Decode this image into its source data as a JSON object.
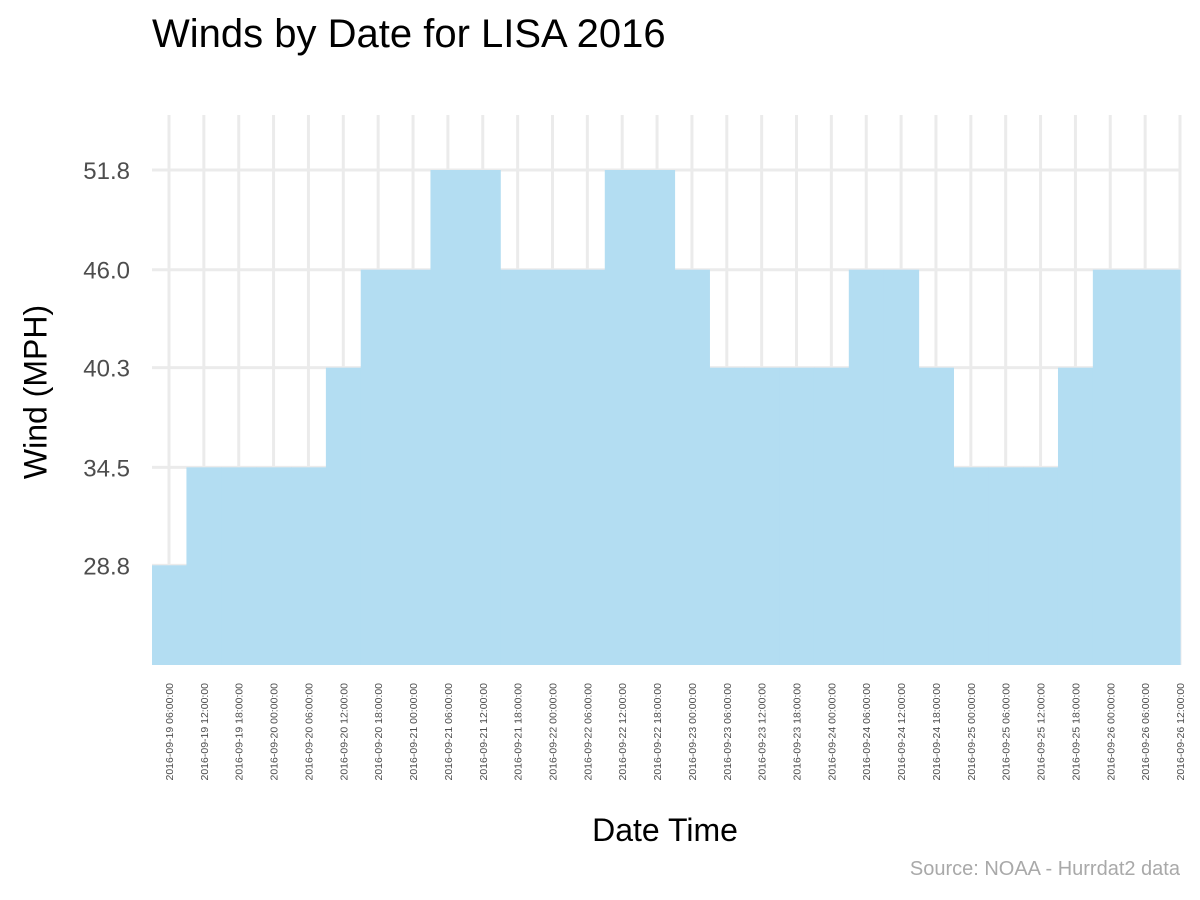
{
  "chart_data": {
    "type": "area",
    "title": "Winds by Date for LISA 2016",
    "xlabel": "Date Time",
    "ylabel": "Wind (MPH)",
    "caption": "Source: NOAA - Hurrdat2 data",
    "yticks": [
      "28.8",
      "34.5",
      "40.3",
      "46.0",
      "51.8"
    ],
    "ylim": [
      23,
      55
    ],
    "grid": true,
    "fill_color": "#b3ddf2",
    "grid_color": "#ebebeb",
    "x": [
      "2016-09-19 06:00:00",
      "2016-09-19 12:00:00",
      "2016-09-19 18:00:00",
      "2016-09-20 00:00:00",
      "2016-09-20 06:00:00",
      "2016-09-20 12:00:00",
      "2016-09-20 18:00:00",
      "2016-09-21 00:00:00",
      "2016-09-21 06:00:00",
      "2016-09-21 12:00:00",
      "2016-09-21 18:00:00",
      "2016-09-22 00:00:00",
      "2016-09-22 06:00:00",
      "2016-09-22 12:00:00",
      "2016-09-22 18:00:00",
      "2016-09-23 00:00:00",
      "2016-09-23 06:00:00",
      "2016-09-23 12:00:00",
      "2016-09-23 18:00:00",
      "2016-09-24 00:00:00",
      "2016-09-24 06:00:00",
      "2016-09-24 12:00:00",
      "2016-09-24 18:00:00",
      "2016-09-25 00:00:00",
      "2016-09-25 06:00:00",
      "2016-09-25 12:00:00",
      "2016-09-25 18:00:00",
      "2016-09-26 00:00:00",
      "2016-09-26 06:00:00",
      "2016-09-26 12:00:00"
    ],
    "values": [
      28.8,
      34.5,
      34.5,
      34.5,
      34.5,
      40.3,
      46.0,
      46.0,
      51.8,
      51.8,
      46.0,
      46.0,
      46.0,
      51.8,
      51.8,
      46.0,
      40.3,
      40.3,
      40.3,
      40.3,
      46.0,
      46.0,
      40.3,
      34.5,
      34.5,
      34.5,
      40.3,
      46.0,
      46.0,
      46.0
    ]
  }
}
